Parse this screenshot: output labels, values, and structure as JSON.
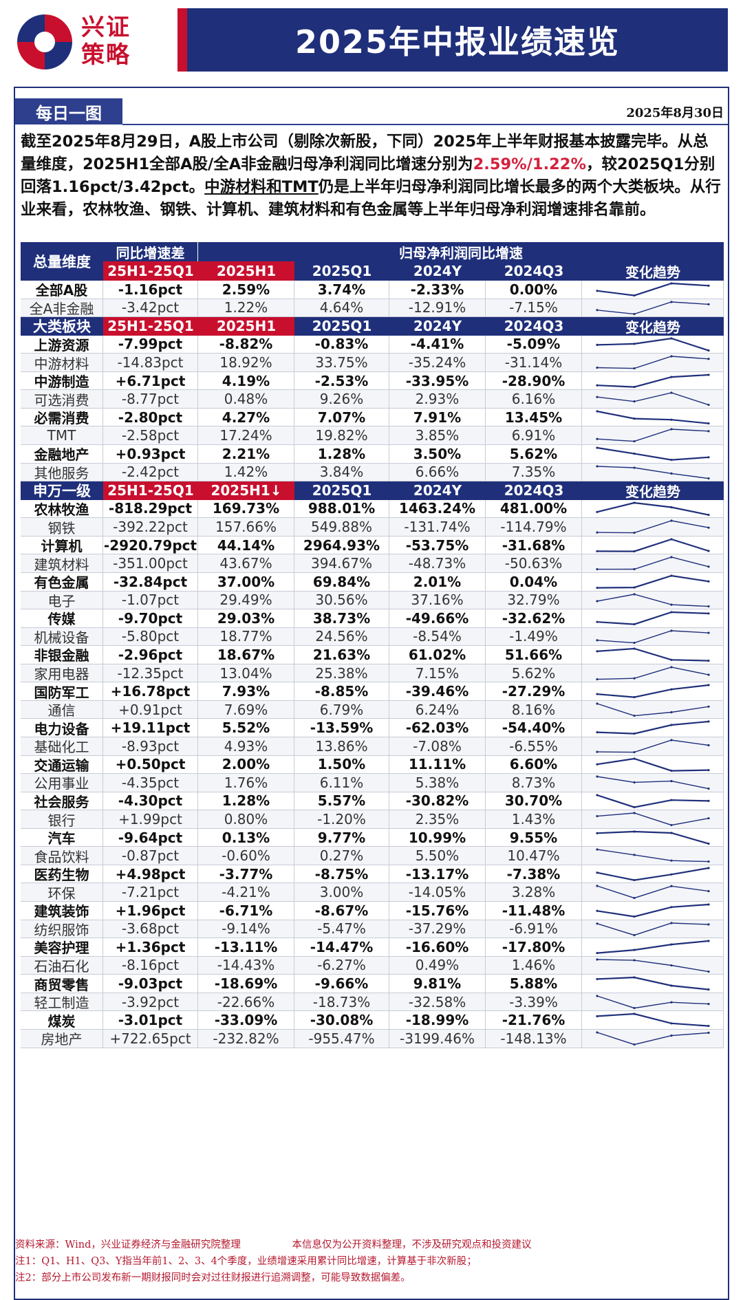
{
  "brand": {
    "name_line1": "兴证",
    "name_line2": "策略"
  },
  "title": "2025年中报业绩速览",
  "tag": "每日一图",
  "date": "2025年8月30日",
  "summary": {
    "p1": "截至2025年8月29日，A股上市公司（剔除次新股，下同）2025年上半年财报基本披露完毕。从总量维度，2025H1全部A股/全A非金融归母净利润同比增速分别为",
    "p1_red": "2.59%/1.22%",
    "p2": "，较2025Q1分别回落1.16pct/3.42pct。",
    "p3_ul": "中游材料和TMT",
    "p4": "仍是上半年归母净利润同比增长最多的两个大类板块。从行业来看，农林牧渔、钢铁、计算机、建筑材料和有色金属等上半年归母净利润增速排名靠前。"
  },
  "colors": {
    "navy": "#1f2f7a",
    "red": "#c8102e",
    "up": "#1f2f7a"
  },
  "table": {
    "header": {
      "col0": "总量维度",
      "col1_top": "同比增速差",
      "group_top": "归母净利润同比增速",
      "col1": "25H1-25Q1",
      "col2": "2025H1",
      "col3": "2025Q1",
      "col4": "2024Y",
      "col5": "2024Q3",
      "col6": "变化趋势"
    },
    "sections": [
      {
        "header": null,
        "rows": [
          {
            "name": "全部A股",
            "diff": "-1.16pct",
            "h1": "2.59%",
            "q1": "3.74%",
            "y24": "-2.33%",
            "q3": "0.00%",
            "bold": true,
            "trend": [
              0.0,
              -2.33,
              3.74,
              2.59
            ]
          },
          {
            "name": "全A非金融",
            "diff": "-3.42pct",
            "h1": "1.22%",
            "q1": "4.64%",
            "y24": "-12.91%",
            "q3": "-7.15%",
            "bold": false,
            "trend": [
              -7.15,
              -12.91,
              4.64,
              1.22
            ]
          }
        ]
      },
      {
        "header": {
          "col0": "大类板块",
          "col1": "25H1-25Q1",
          "col2": "2025H1",
          "col3": "2025Q1",
          "col4": "2024Y",
          "col5": "2024Q3",
          "col6": "变化趋势"
        },
        "rows": [
          {
            "name": "上游资源",
            "diff": "-7.99pct",
            "h1": "-8.82%",
            "q1": "-0.83%",
            "y24": "-4.41%",
            "q3": "-5.09%",
            "bold": true,
            "trend": [
              -5.09,
              -4.41,
              -0.83,
              -8.82
            ]
          },
          {
            "name": "中游材料",
            "diff": "-14.83pct",
            "h1": "18.92%",
            "q1": "33.75%",
            "y24": "-35.24%",
            "q3": "-31.14%",
            "bold": false,
            "trend": [
              -31.14,
              -35.24,
              33.75,
              18.92
            ]
          },
          {
            "name": "中游制造",
            "diff": "+6.71pct",
            "h1": "4.19%",
            "q1": "-2.53%",
            "y24": "-33.95%",
            "q3": "-28.90%",
            "bold": true,
            "trend": [
              -28.9,
              -33.95,
              -2.53,
              4.19
            ]
          },
          {
            "name": "可选消费",
            "diff": "-8.77pct",
            "h1": "0.48%",
            "q1": "9.26%",
            "y24": "2.93%",
            "q3": "6.16%",
            "bold": false,
            "trend": [
              6.16,
              2.93,
              9.26,
              0.48
            ]
          },
          {
            "name": "必需消费",
            "diff": "-2.80pct",
            "h1": "4.27%",
            "q1": "7.07%",
            "y24": "7.91%",
            "q3": "13.45%",
            "bold": true,
            "trend": [
              13.45,
              7.91,
              7.07,
              4.27
            ]
          },
          {
            "name": "TMT",
            "diff": "-2.58pct",
            "h1": "17.24%",
            "q1": "19.82%",
            "y24": "3.85%",
            "q3": "6.91%",
            "bold": false,
            "trend": [
              6.91,
              3.85,
              19.82,
              17.24
            ]
          },
          {
            "name": "金融地产",
            "diff": "+0.93pct",
            "h1": "2.21%",
            "q1": "1.28%",
            "y24": "3.50%",
            "q3": "5.62%",
            "bold": true,
            "trend": [
              5.62,
              3.5,
              1.28,
              2.21
            ]
          },
          {
            "name": "其他服务",
            "diff": "-2.42pct",
            "h1": "1.42%",
            "q1": "3.84%",
            "y24": "6.66%",
            "q3": "7.35%",
            "bold": false,
            "trend": [
              7.35,
              6.66,
              3.84,
              1.42
            ]
          }
        ]
      },
      {
        "header": {
          "col0": "申万一级",
          "col1": "25H1-25Q1",
          "col2": "2025H1↓",
          "col3": "2025Q1",
          "col4": "2024Y",
          "col5": "2024Q3",
          "col6": "变化趋势"
        },
        "rows": [
          {
            "name": "农林牧渔",
            "diff": "-818.29pct",
            "h1": "169.73%",
            "q1": "988.01%",
            "y24": "1463.24%",
            "q3": "481.00%",
            "bold": true,
            "trend": [
              481.0,
              1463.24,
              988.01,
              169.73
            ]
          },
          {
            "name": "钢铁",
            "diff": "-392.22pct",
            "h1": "157.66%",
            "q1": "549.88%",
            "y24": "-131.74%",
            "q3": "-114.79%",
            "bold": false,
            "trend": [
              -114.79,
              -131.74,
              549.88,
              157.66
            ]
          },
          {
            "name": "计算机",
            "diff": "-2920.79pct",
            "h1": "44.14%",
            "q1": "2964.93%",
            "y24": "-53.75%",
            "q3": "-31.68%",
            "bold": true,
            "trend": [
              -31.68,
              -53.75,
              2964.93,
              44.14
            ]
          },
          {
            "name": "建筑材料",
            "diff": "-351.00pct",
            "h1": "43.67%",
            "q1": "394.67%",
            "y24": "-48.73%",
            "q3": "-50.63%",
            "bold": false,
            "trend": [
              -50.63,
              -48.73,
              394.67,
              43.67
            ]
          },
          {
            "name": "有色金属",
            "diff": "-32.84pct",
            "h1": "37.00%",
            "q1": "69.84%",
            "y24": "2.01%",
            "q3": "0.04%",
            "bold": true,
            "trend": [
              0.04,
              2.01,
              69.84,
              37.0
            ]
          },
          {
            "name": "电子",
            "diff": "-1.07pct",
            "h1": "29.49%",
            "q1": "30.56%",
            "y24": "37.16%",
            "q3": "32.79%",
            "bold": false,
            "trend": [
              32.79,
              37.16,
              30.56,
              29.49
            ]
          },
          {
            "name": "传媒",
            "diff": "-9.70pct",
            "h1": "29.03%",
            "q1": "38.73%",
            "y24": "-49.66%",
            "q3": "-32.62%",
            "bold": true,
            "trend": [
              -32.62,
              -49.66,
              38.73,
              29.03
            ]
          },
          {
            "name": "机械设备",
            "diff": "-5.80pct",
            "h1": "18.77%",
            "q1": "24.56%",
            "y24": "-8.54%",
            "q3": "-1.49%",
            "bold": false,
            "trend": [
              -1.49,
              -8.54,
              24.56,
              18.77
            ]
          },
          {
            "name": "非银金融",
            "diff": "-2.96pct",
            "h1": "18.67%",
            "q1": "21.63%",
            "y24": "61.02%",
            "q3": "51.66%",
            "bold": true,
            "trend": [
              51.66,
              61.02,
              21.63,
              18.67
            ]
          },
          {
            "name": "家用电器",
            "diff": "-12.35pct",
            "h1": "13.04%",
            "q1": "25.38%",
            "y24": "7.15%",
            "q3": "5.62%",
            "bold": false,
            "trend": [
              5.62,
              7.15,
              25.38,
              13.04
            ]
          },
          {
            "name": "国防军工",
            "diff": "+16.78pct",
            "h1": "7.93%",
            "q1": "-8.85%",
            "y24": "-39.46%",
            "q3": "-27.29%",
            "bold": true,
            "trend": [
              -27.29,
              -39.46,
              -8.85,
              7.93
            ]
          },
          {
            "name": "通信",
            "diff": "+0.91pct",
            "h1": "7.69%",
            "q1": "6.79%",
            "y24": "6.24%",
            "q3": "8.16%",
            "bold": false,
            "trend": [
              8.16,
              6.24,
              6.79,
              7.69
            ]
          },
          {
            "name": "电力设备",
            "diff": "+19.11pct",
            "h1": "5.52%",
            "q1": "-13.59%",
            "y24": "-62.03%",
            "q3": "-54.40%",
            "bold": true,
            "trend": [
              -54.4,
              -62.03,
              -13.59,
              5.52
            ]
          },
          {
            "name": "基础化工",
            "diff": "-8.93pct",
            "h1": "4.93%",
            "q1": "13.86%",
            "y24": "-7.08%",
            "q3": "-6.55%",
            "bold": false,
            "trend": [
              -6.55,
              -7.08,
              13.86,
              4.93
            ]
          },
          {
            "name": "交通运输",
            "diff": "+0.50pct",
            "h1": "2.00%",
            "q1": "1.50%",
            "y24": "11.11%",
            "q3": "6.60%",
            "bold": true,
            "trend": [
              6.6,
              11.11,
              1.5,
              2.0
            ]
          },
          {
            "name": "公用事业",
            "diff": "-4.35pct",
            "h1": "1.76%",
            "q1": "6.11%",
            "y24": "5.38%",
            "q3": "8.73%",
            "bold": false,
            "trend": [
              8.73,
              5.38,
              6.11,
              1.76
            ]
          },
          {
            "name": "社会服务",
            "diff": "-4.30pct",
            "h1": "1.28%",
            "q1": "5.57%",
            "y24": "-30.82%",
            "q3": "30.70%",
            "bold": true,
            "trend": [
              30.7,
              -30.82,
              5.57,
              1.28
            ]
          },
          {
            "name": "银行",
            "diff": "+1.99pct",
            "h1": "0.80%",
            "q1": "-1.20%",
            "y24": "2.35%",
            "q3": "1.43%",
            "bold": false,
            "trend": [
              1.43,
              2.35,
              -1.2,
              0.8
            ]
          },
          {
            "name": "汽车",
            "diff": "-9.64pct",
            "h1": "0.13%",
            "q1": "9.77%",
            "y24": "10.99%",
            "q3": "9.55%",
            "bold": true,
            "trend": [
              9.55,
              10.99,
              9.77,
              0.13
            ]
          },
          {
            "name": "食品饮料",
            "diff": "-0.87pct",
            "h1": "-0.60%",
            "q1": "0.27%",
            "y24": "5.50%",
            "q3": "10.47%",
            "bold": false,
            "trend": [
              10.47,
              5.5,
              0.27,
              -0.6
            ]
          },
          {
            "name": "医药生物",
            "diff": "+4.98pct",
            "h1": "-3.77%",
            "q1": "-8.75%",
            "y24": "-13.17%",
            "q3": "-7.38%",
            "bold": true,
            "trend": [
              -7.38,
              -13.17,
              -8.75,
              -3.77
            ]
          },
          {
            "name": "环保",
            "diff": "-7.21pct",
            "h1": "-4.21%",
            "q1": "3.00%",
            "y24": "-14.05%",
            "q3": "3.28%",
            "bold": false,
            "trend": [
              3.28,
              -14.05,
              3.0,
              -4.21
            ]
          },
          {
            "name": "建筑装饰",
            "diff": "+1.96pct",
            "h1": "-6.71%",
            "q1": "-8.67%",
            "y24": "-15.76%",
            "q3": "-11.48%",
            "bold": true,
            "trend": [
              -11.48,
              -15.76,
              -8.67,
              -6.71
            ]
          },
          {
            "name": "纺织服饰",
            "diff": "-3.68pct",
            "h1": "-9.14%",
            "q1": "-5.47%",
            "y24": "-37.29%",
            "q3": "-6.91%",
            "bold": false,
            "trend": [
              -6.91,
              -37.29,
              -5.47,
              -9.14
            ]
          },
          {
            "name": "美容护理",
            "diff": "+1.36pct",
            "h1": "-13.11%",
            "q1": "-14.47%",
            "y24": "-16.60%",
            "q3": "-17.80%",
            "bold": true,
            "trend": [
              -17.8,
              -16.6,
              -14.47,
              -13.11
            ]
          },
          {
            "name": "石油石化",
            "diff": "-8.16pct",
            "h1": "-14.43%",
            "q1": "-6.27%",
            "y24": "0.49%",
            "q3": "1.46%",
            "bold": false,
            "trend": [
              1.46,
              0.49,
              -6.27,
              -14.43
            ]
          },
          {
            "name": "商贸零售",
            "diff": "-9.03pct",
            "h1": "-18.69%",
            "q1": "-9.66%",
            "y24": "9.81%",
            "q3": "5.88%",
            "bold": true,
            "trend": [
              5.88,
              9.81,
              -9.66,
              -18.69
            ]
          },
          {
            "name": "轻工制造",
            "diff": "-3.92pct",
            "h1": "-22.66%",
            "q1": "-18.73%",
            "y24": "-32.58%",
            "q3": "-3.39%",
            "bold": false,
            "trend": [
              -3.39,
              -32.58,
              -18.73,
              -22.66
            ]
          },
          {
            "name": "煤炭",
            "diff": "-3.01pct",
            "h1": "-33.09%",
            "q1": "-30.08%",
            "y24": "-18.99%",
            "q3": "-21.76%",
            "bold": true,
            "trend": [
              -21.76,
              -18.99,
              -30.08,
              -33.09
            ]
          },
          {
            "name": "房地产",
            "diff": "+722.65pct",
            "h1": "-232.82%",
            "q1": "-955.47%",
            "y24": "-3199.46%",
            "q3": "-148.13%",
            "bold": false,
            "trend": [
              -148.13,
              -3199.46,
              -955.47,
              -232.82
            ]
          }
        ]
      }
    ]
  },
  "footer": {
    "source": "资料来源：Wind，兴业证券经济与金融研究院整理",
    "disclaimer": "本信息仅为公开资料整理，不涉及研究观点和投资建议",
    "note1": "注1：Q1、H1、Q3、Y指当年前1、2、3、4个季度，业绩增速采用累计同比增速，计算基于非次新股；",
    "note2": "注2：部分上市公司发布新一期财报同时会对过往财报进行追溯调整，可能导致数据偏差。"
  }
}
